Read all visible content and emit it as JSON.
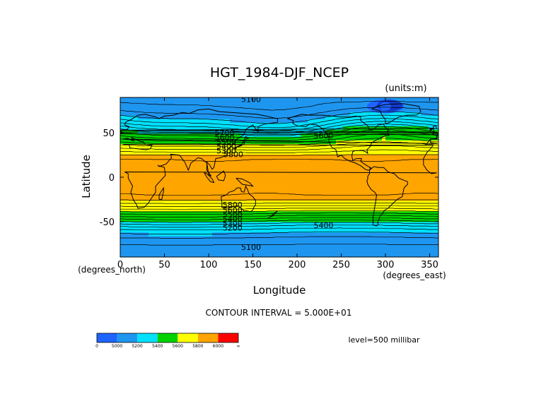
{
  "chart_data": {
    "type": "heatmap",
    "title": "HGT_1984-DJF_NCEP",
    "units_note": "(units:m)",
    "xlabel": "Longitude",
    "ylabel": "Latitude",
    "x_unit_label": "(degrees_east)",
    "y_unit_label": "(degrees_north)",
    "xlim": [
      0,
      360
    ],
    "ylim": [
      -90,
      90
    ],
    "x_ticks": [
      0,
      50,
      100,
      150,
      200,
      250,
      300,
      350
    ],
    "y_ticks": [
      -50,
      0,
      50
    ],
    "x_tick_labels": [
      "0",
      "50",
      "100",
      "150",
      "200",
      "250",
      "300",
      "350"
    ],
    "y_tick_labels": [
      "-50",
      "0",
      "50"
    ],
    "contour_interval_text": "CONTOUR INTERVAL = 5.000E+01",
    "level_text": "level=500 millibar",
    "colorbar": {
      "colors": [
        "#1e64ff",
        "#1e96f0",
        "#00e1ff",
        "#00d200",
        "#ffff00",
        "#ffa500",
        "#ff0000"
      ],
      "tick_labels": [
        "0",
        "5000",
        "5200",
        "5400",
        "5600",
        "5800",
        "6000",
        "∞"
      ]
    },
    "color_levels": [
      0,
      5000,
      5200,
      5400,
      5600,
      5800,
      6000
    ],
    "zonal_profile": {
      "lat": [
        -90,
        -80,
        -70,
        -60,
        -55,
        -50,
        -45,
        -40,
        -35,
        -30,
        -25,
        -20,
        -10,
        0,
        10,
        20,
        25,
        30,
        35,
        40,
        45,
        50,
        55,
        60,
        65,
        70,
        75,
        80,
        90
      ],
      "hgt": [
        5050,
        5080,
        5130,
        5230,
        5300,
        5390,
        5480,
        5570,
        5660,
        5740,
        5810,
        5850,
        5870,
        5870,
        5870,
        5850,
        5800,
        5730,
        5660,
        5580,
        5500,
        5430,
        5360,
        5290,
        5230,
        5180,
        5140,
        5110,
        5080
      ]
    },
    "contour_labels": [
      {
        "text": "5100",
        "lon": 148,
        "lat": 88
      },
      {
        "text": "5700",
        "lon": 118,
        "lat": 50
      },
      {
        "text": "5600",
        "lon": 118,
        "lat": 45
      },
      {
        "text": "5500",
        "lon": 120,
        "lat": 40
      },
      {
        "text": "5400",
        "lon": 120,
        "lat": 35
      },
      {
        "text": "5300",
        "lon": 120,
        "lat": 30
      },
      {
        "text": "5800",
        "lon": 128,
        "lat": 26
      },
      {
        "text": "5600",
        "lon": 230,
        "lat": 47
      },
      {
        "text": "5800",
        "lon": 127,
        "lat": -31
      },
      {
        "text": "5600",
        "lon": 127,
        "lat": -37
      },
      {
        "text": "5500",
        "lon": 127,
        "lat": -42
      },
      {
        "text": "5400",
        "lon": 127,
        "lat": -47
      },
      {
        "text": "5300",
        "lon": 127,
        "lat": -52
      },
      {
        "text": "5200",
        "lon": 127,
        "lat": -57
      },
      {
        "text": "5400",
        "lon": 230,
        "lat": -54
      },
      {
        "text": "5100",
        "lon": 148,
        "lat": -79
      }
    ]
  }
}
